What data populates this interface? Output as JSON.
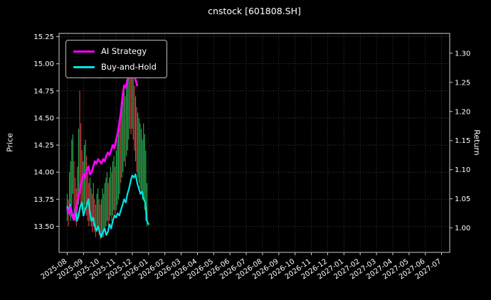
{
  "chart_data": {
    "type": "line",
    "title": "cnstock [601808.SH]",
    "background": "#000000",
    "grid": true,
    "legend_position": "upper-left",
    "left_axis": {
      "label": "Price",
      "ticks": [
        13.5,
        13.75,
        14.0,
        14.25,
        14.5,
        14.75,
        15.0,
        15.25
      ],
      "range": [
        13.26,
        15.28
      ]
    },
    "right_axis": {
      "label": "Return",
      "ticks": [
        1.0,
        1.05,
        1.1,
        1.15,
        1.2,
        1.25,
        1.3
      ],
      "range": [
        0.958,
        1.334
      ]
    },
    "x_axis": {
      "tick_labels": [
        "2025-08",
        "2025-09",
        "2025-10",
        "2025-11",
        "2025-12",
        "2026-01",
        "2026-02",
        "2026-03",
        "2026-04",
        "2026-05",
        "2026-06",
        "2026-07",
        "2026-08",
        "2026-09",
        "2026-10",
        "2026-11",
        "2026-12",
        "2027-01",
        "2027-02",
        "2027-03",
        "2027-04",
        "2027-05",
        "2027-06",
        "2027-07"
      ],
      "range_months": [
        -0.5,
        23.5
      ]
    },
    "series": [
      {
        "name": "AI Strategy",
        "color": "#ff00ff",
        "width": 2.8,
        "axis": "left",
        "x_start": 0,
        "x_step": 0.1,
        "values": [
          13.66,
          13.62,
          13.68,
          13.6,
          13.56,
          13.64,
          13.7,
          13.78,
          13.85,
          13.92,
          13.98,
          13.95,
          14.02,
          14.05,
          13.98,
          14.0,
          14.05,
          14.1,
          14.08,
          14.12,
          14.1,
          14.08,
          14.12,
          14.1,
          14.15,
          14.18,
          14.16,
          14.2,
          14.25,
          14.22,
          14.3,
          14.35,
          14.45,
          14.55,
          14.7,
          14.8,
          14.78,
          14.85,
          14.95,
          15.05,
          15.1,
          14.95,
          14.85,
          14.8
        ]
      },
      {
        "name": "Buy-and-Hold",
        "color": "#00e5e5",
        "width": 2.2,
        "axis": "left",
        "x_start": 0,
        "x_step": 0.1,
        "values": [
          13.68,
          13.65,
          13.7,
          13.62,
          13.58,
          13.66,
          13.55,
          13.6,
          13.68,
          13.72,
          13.6,
          13.65,
          13.7,
          13.75,
          13.62,
          13.55,
          13.58,
          13.5,
          13.46,
          13.5,
          13.44,
          13.4,
          13.45,
          13.48,
          13.42,
          13.45,
          13.52,
          13.48,
          13.55,
          13.6,
          13.58,
          13.62,
          13.6,
          13.65,
          13.7,
          13.75,
          13.72,
          13.8,
          13.85,
          13.92,
          13.97,
          13.95,
          13.98,
          13.9,
          13.85,
          13.8,
          13.82,
          13.75,
          13.72,
          13.55,
          13.52
        ]
      }
    ],
    "candle_colors": {
      "r": "#c23b3b",
      "g": "#27a24b"
    },
    "candles": [
      [
        0.0,
        13.55,
        13.8,
        "g"
      ],
      [
        0.07,
        13.5,
        13.75,
        "r"
      ],
      [
        0.14,
        13.6,
        14.0,
        "g"
      ],
      [
        0.21,
        13.55,
        14.1,
        "g"
      ],
      [
        0.28,
        13.7,
        14.3,
        "g"
      ],
      [
        0.35,
        13.8,
        14.35,
        "g"
      ],
      [
        0.42,
        13.6,
        14.1,
        "r"
      ],
      [
        0.49,
        13.55,
        13.95,
        "r"
      ],
      [
        0.56,
        13.5,
        13.85,
        "r"
      ],
      [
        0.63,
        13.6,
        14.05,
        "g"
      ],
      [
        0.7,
        13.7,
        14.4,
        "g"
      ],
      [
        0.77,
        13.8,
        14.75,
        "r"
      ],
      [
        0.84,
        13.7,
        14.45,
        "r"
      ],
      [
        0.91,
        13.65,
        14.2,
        "r"
      ],
      [
        0.98,
        13.6,
        14.1,
        "g"
      ],
      [
        1.05,
        13.65,
        14.25,
        "g"
      ],
      [
        1.12,
        13.7,
        14.3,
        "g"
      ],
      [
        1.19,
        13.6,
        14.15,
        "r"
      ],
      [
        1.26,
        13.55,
        14.0,
        "r"
      ],
      [
        1.33,
        13.5,
        13.9,
        "r"
      ],
      [
        1.4,
        13.55,
        13.95,
        "g"
      ],
      [
        1.47,
        13.5,
        13.85,
        "r"
      ],
      [
        1.54,
        13.45,
        13.8,
        "r"
      ],
      [
        1.61,
        13.5,
        13.9,
        "g"
      ],
      [
        1.68,
        13.45,
        13.75,
        "r"
      ],
      [
        1.75,
        13.4,
        13.7,
        "r"
      ],
      [
        1.82,
        13.45,
        13.8,
        "g"
      ],
      [
        1.89,
        13.5,
        13.85,
        "g"
      ],
      [
        1.96,
        13.42,
        13.75,
        "r"
      ],
      [
        2.03,
        13.38,
        13.7,
        "r"
      ],
      [
        2.1,
        13.4,
        13.75,
        "g"
      ],
      [
        2.17,
        13.45,
        13.85,
        "g"
      ],
      [
        2.24,
        13.4,
        13.8,
        "r"
      ],
      [
        2.31,
        13.45,
        13.9,
        "g"
      ],
      [
        2.38,
        13.5,
        13.95,
        "g"
      ],
      [
        2.45,
        13.55,
        14.0,
        "g"
      ],
      [
        2.52,
        13.5,
        13.9,
        "r"
      ],
      [
        2.59,
        13.55,
        13.95,
        "g"
      ],
      [
        2.66,
        13.6,
        14.05,
        "g"
      ],
      [
        2.73,
        13.55,
        14.0,
        "r"
      ],
      [
        2.8,
        13.6,
        14.1,
        "g"
      ],
      [
        2.87,
        13.65,
        14.15,
        "g"
      ],
      [
        2.94,
        13.6,
        14.05,
        "r"
      ],
      [
        3.01,
        13.65,
        14.2,
        "g"
      ],
      [
        3.08,
        13.7,
        14.3,
        "g"
      ],
      [
        3.15,
        13.75,
        14.4,
        "g"
      ],
      [
        3.22,
        13.8,
        14.5,
        "g"
      ],
      [
        3.29,
        13.9,
        14.55,
        "r"
      ],
      [
        3.36,
        13.95,
        14.65,
        "g"
      ],
      [
        3.43,
        14.0,
        14.7,
        "g"
      ],
      [
        3.5,
        14.1,
        14.8,
        "g"
      ],
      [
        3.57,
        14.05,
        14.7,
        "r"
      ],
      [
        3.64,
        14.15,
        14.85,
        "g"
      ],
      [
        3.71,
        14.2,
        14.9,
        "g"
      ],
      [
        3.78,
        14.3,
        15.0,
        "g"
      ],
      [
        3.85,
        14.4,
        15.1,
        "r"
      ],
      [
        3.92,
        14.35,
        15.05,
        "r"
      ],
      [
        3.99,
        14.4,
        15.0,
        "g"
      ],
      [
        4.06,
        14.3,
        14.9,
        "r"
      ],
      [
        4.13,
        14.2,
        14.8,
        "r"
      ],
      [
        4.2,
        14.1,
        14.7,
        "g"
      ],
      [
        4.27,
        14.0,
        14.6,
        "r"
      ],
      [
        4.34,
        13.95,
        14.55,
        "g"
      ],
      [
        4.41,
        13.9,
        14.5,
        "g"
      ],
      [
        4.48,
        13.85,
        14.45,
        "g"
      ],
      [
        4.55,
        13.8,
        14.4,
        "g"
      ],
      [
        4.62,
        13.75,
        14.3,
        "g"
      ],
      [
        4.69,
        13.75,
        14.45,
        "g"
      ],
      [
        4.76,
        13.65,
        14.35,
        "g"
      ],
      [
        4.83,
        13.55,
        14.2,
        "g"
      ],
      [
        4.9,
        13.5,
        13.9,
        "g"
      ]
    ]
  }
}
